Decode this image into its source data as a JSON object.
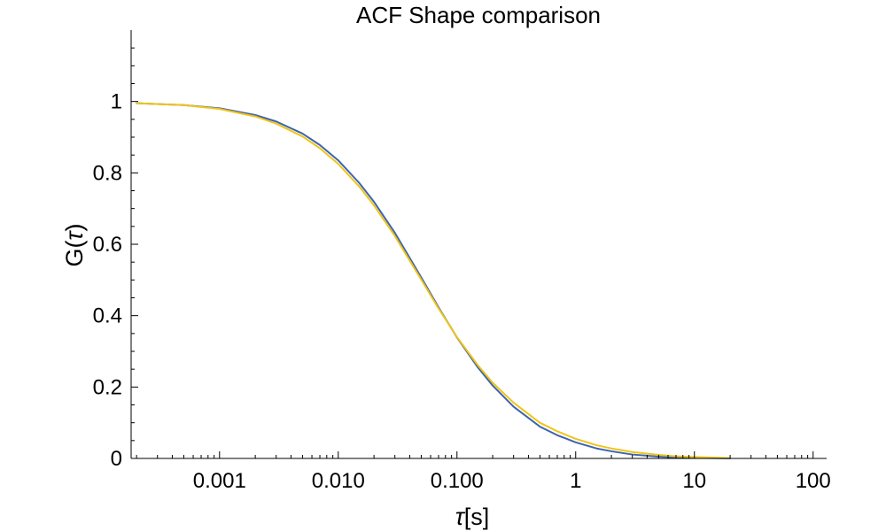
{
  "chart_data": {
    "type": "line",
    "title": "ACF Shape comparison",
    "xlabel_tau": "τ",
    "xlabel_rest": "[s]",
    "ylabel_prefix": "G(",
    "ylabel_tau": "τ",
    "ylabel_suffix": ")",
    "x_scale": "log",
    "xlim": [
      0.00018,
      130
    ],
    "ylim": [
      0,
      1.2
    ],
    "grid": false,
    "legend": "none",
    "x_ticks": [
      {
        "value": 0.001,
        "label": "0.001"
      },
      {
        "value": 0.01,
        "label": "0.010"
      },
      {
        "value": 0.1,
        "label": "0.100"
      },
      {
        "value": 1,
        "label": "1"
      },
      {
        "value": 10,
        "label": "10"
      },
      {
        "value": 100,
        "label": "100"
      }
    ],
    "y_ticks": [
      {
        "value": 0,
        "label": "0"
      },
      {
        "value": 0.2,
        "label": "0.2"
      },
      {
        "value": 0.4,
        "label": "0.4"
      },
      {
        "value": 0.6,
        "label": "0.6"
      },
      {
        "value": 0.8,
        "label": "0.8"
      },
      {
        "value": 1,
        "label": "1"
      }
    ],
    "series": [
      {
        "color": "#3c64ae",
        "x": [
          0.0002,
          0.0005,
          0.001,
          0.002,
          0.003,
          0.005,
          0.007,
          0.01,
          0.015,
          0.02,
          0.03,
          0.05,
          0.07,
          0.1,
          0.15,
          0.2,
          0.3,
          0.5,
          0.7,
          1,
          1.5,
          2,
          3,
          5,
          7,
          10,
          20
        ],
        "y": [
          0.995,
          0.99,
          0.981,
          0.962,
          0.944,
          0.91,
          0.878,
          0.835,
          0.772,
          0.719,
          0.632,
          0.507,
          0.423,
          0.339,
          0.255,
          0.204,
          0.145,
          0.089,
          0.065,
          0.045,
          0.028,
          0.02,
          0.011,
          0.005,
          0.003,
          0.0015,
          0.0004
        ]
      },
      {
        "color": "#f0c419",
        "x": [
          0.0002,
          0.0005,
          0.001,
          0.002,
          0.003,
          0.005,
          0.007,
          0.01,
          0.015,
          0.02,
          0.03,
          0.05,
          0.07,
          0.1,
          0.15,
          0.2,
          0.3,
          0.5,
          0.7,
          1,
          1.5,
          2,
          3,
          5,
          7,
          10,
          20
        ],
        "y": [
          0.995,
          0.99,
          0.979,
          0.958,
          0.938,
          0.902,
          0.869,
          0.825,
          0.762,
          0.709,
          0.623,
          0.501,
          0.42,
          0.34,
          0.261,
          0.212,
          0.156,
          0.1,
          0.076,
          0.055,
          0.037,
          0.028,
          0.018,
          0.01,
          0.006,
          0.004,
          0.001
        ]
      }
    ]
  }
}
